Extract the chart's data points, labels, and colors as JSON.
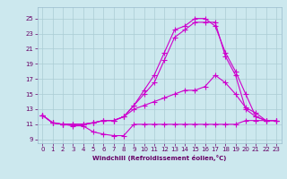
{
  "title": "",
  "xlabel": "Windchill (Refroidissement éolien,°C)",
  "ylabel": "",
  "background_color": "#cce8ee",
  "grid_color": "#aaccd4",
  "line_color": "#cc00cc",
  "x_ticks": [
    0,
    1,
    2,
    3,
    4,
    5,
    6,
    7,
    8,
    9,
    10,
    11,
    12,
    13,
    14,
    15,
    16,
    17,
    18,
    19,
    20,
    21,
    22,
    23
  ],
  "y_ticks": [
    9,
    11,
    13,
    15,
    17,
    19,
    21,
    23,
    25
  ],
  "xlim": [
    -0.5,
    23.5
  ],
  "ylim": [
    8.5,
    26.5
  ],
  "line1_x": [
    0,
    1,
    2,
    3,
    4,
    5,
    6,
    7,
    8,
    9,
    10,
    11,
    12,
    13,
    14,
    15,
    16,
    17,
    18,
    19,
    20,
    21,
    22,
    23
  ],
  "line1_y": [
    12.2,
    11.2,
    11.0,
    10.8,
    10.8,
    10.0,
    9.7,
    9.5,
    9.5,
    11.0,
    11.0,
    11.0,
    11.0,
    11.0,
    11.0,
    11.0,
    11.0,
    11.0,
    11.0,
    11.0,
    11.5,
    11.5,
    11.5,
    11.5
  ],
  "line2_x": [
    0,
    1,
    2,
    3,
    4,
    5,
    6,
    7,
    8,
    9,
    10,
    11,
    12,
    13,
    14,
    15,
    16,
    17,
    18,
    19,
    20,
    21,
    22,
    23
  ],
  "line2_y": [
    12.2,
    11.2,
    11.0,
    11.0,
    11.0,
    11.2,
    11.5,
    11.5,
    12.0,
    13.0,
    13.5,
    14.0,
    14.5,
    15.0,
    15.5,
    15.5,
    16.0,
    17.5,
    16.5,
    15.0,
    13.2,
    12.5,
    11.5,
    11.5
  ],
  "line3_x": [
    0,
    1,
    2,
    3,
    4,
    5,
    6,
    7,
    8,
    9,
    10,
    11,
    12,
    13,
    14,
    15,
    16,
    17,
    18,
    19,
    20,
    21,
    22,
    23
  ],
  "line3_y": [
    12.2,
    11.2,
    11.0,
    11.0,
    11.0,
    11.2,
    11.5,
    11.5,
    12.0,
    13.5,
    15.0,
    16.5,
    19.5,
    22.5,
    23.5,
    24.5,
    24.5,
    24.5,
    20.0,
    17.5,
    13.0,
    12.0,
    11.5,
    11.5
  ],
  "line4_x": [
    0,
    1,
    2,
    3,
    4,
    5,
    6,
    7,
    8,
    9,
    10,
    11,
    12,
    13,
    14,
    15,
    16,
    17,
    18,
    19,
    20,
    21,
    22,
    23
  ],
  "line4_y": [
    12.2,
    11.2,
    11.0,
    11.0,
    11.0,
    11.2,
    11.5,
    11.5,
    12.0,
    13.5,
    15.5,
    17.5,
    20.5,
    23.5,
    24.0,
    25.0,
    25.0,
    24.0,
    20.5,
    18.0,
    15.0,
    12.0,
    11.5,
    11.5
  ],
  "tick_fontsize": 5,
  "xlabel_fontsize": 5,
  "xlabel_color": "#660066",
  "tick_color": "#660066"
}
